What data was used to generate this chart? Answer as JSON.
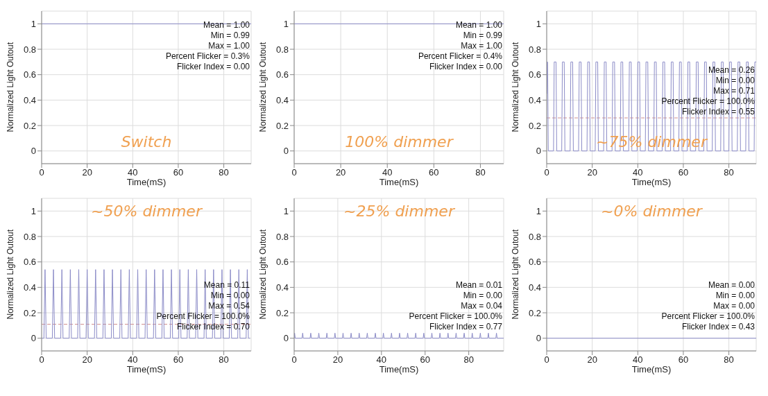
{
  "chart_data": [
    {
      "type": "line",
      "title": "Switch",
      "xlabel": "Time(mS)",
      "ylabel": "Normalized Light Outout",
      "x": [
        0,
        92
      ],
      "values": [
        1,
        1
      ],
      "color": "#8c8cc8",
      "xlim": [
        0,
        92
      ],
      "xticks": [
        0,
        20,
        40,
        60,
        80
      ],
      "ylim": [
        -0.1,
        1.1
      ],
      "yticks": [
        0,
        0.2,
        0.4,
        0.6,
        0.8,
        1
      ],
      "grid": true,
      "annotations": [
        "Mean = 1.00",
        "Min = 0.99",
        "Max = 1.00",
        "Percent Flicker = 0.3%",
        "Flicker Index = 0.00"
      ]
    },
    {
      "type": "line",
      "title": "100% dimmer",
      "xlabel": "Time(mS)",
      "ylabel": "Normalized Light Outout",
      "x": [
        0,
        90
      ],
      "values": [
        1,
        1
      ],
      "color": "#8c8cc8",
      "xlim": [
        0,
        90
      ],
      "xticks": [
        0,
        20,
        40,
        60,
        80
      ],
      "ylim": [
        -0.1,
        1.1
      ],
      "yticks": [
        0,
        0.2,
        0.4,
        0.6,
        0.8,
        1
      ],
      "grid": true,
      "annotations": [
        "Mean = 1.00",
        "Min = 0.99",
        "Max = 1.00",
        "Percent Flicker = 0.4%",
        "Flicker Index = 0.00"
      ]
    },
    {
      "type": "line",
      "title": "~75% dimmer",
      "xlabel": "Time(mS)",
      "ylabel": "Normalized Light Outout",
      "x": [
        0,
        0.1,
        0.4,
        0.7,
        3.0,
        3.3,
        4.1,
        4.4,
        6.6,
        6.9,
        7.7,
        8.0,
        10.3,
        10.6,
        11.4,
        11.7,
        14.0,
        14.3,
        15.1,
        15.4,
        17.7,
        18.0,
        18.8,
        19.1,
        21.3,
        21.6,
        22.4,
        22.7,
        25.0,
        25.3,
        26.1,
        26.4,
        28.7,
        29.0,
        29.8,
        30.1,
        32.3,
        32.6,
        33.4,
        33.7,
        36.0,
        36.3,
        37.1,
        37.4,
        39.7,
        40.0,
        40.8,
        41.1,
        43.3,
        43.6,
        44.4,
        44.7,
        47.0,
        47.3,
        48.1,
        48.4,
        50.7,
        51.0,
        51.8,
        52.1,
        54.4,
        54.7,
        55.5,
        55.8,
        58.0,
        58.3,
        59.1,
        59.4,
        61.7,
        62.0,
        62.8,
        63.1,
        65.4,
        65.7,
        66.5,
        66.8,
        69.0,
        69.3,
        70.1,
        70.4,
        72.7,
        73.0,
        73.8,
        74.1,
        76.4,
        76.7,
        77.5,
        77.8,
        80.0,
        80.3,
        81.1,
        81.4,
        83.7,
        84.0,
        84.8,
        85.1,
        87.4,
        87.7,
        88.5,
        88.8,
        91.1,
        91.4,
        92
      ],
      "values": [
        0.45,
        0.7,
        0.7,
        0,
        0,
        0.7,
        0.7,
        0,
        0,
        0.7,
        0.7,
        0,
        0,
        0.7,
        0.7,
        0,
        0,
        0.7,
        0.7,
        0,
        0,
        0.7,
        0.7,
        0,
        0,
        0.7,
        0.7,
        0,
        0,
        0.7,
        0.7,
        0,
        0,
        0.7,
        0.7,
        0,
        0,
        0.7,
        0.7,
        0,
        0,
        0.7,
        0.7,
        0,
        0,
        0.7,
        0.7,
        0,
        0,
        0.7,
        0.7,
        0,
        0,
        0.7,
        0.7,
        0,
        0,
        0.7,
        0.7,
        0,
        0,
        0.7,
        0.7,
        0,
        0,
        0.7,
        0.7,
        0,
        0,
        0.7,
        0.7,
        0,
        0,
        0.7,
        0.7,
        0,
        0,
        0.7,
        0.7,
        0,
        0,
        0.7,
        0.7,
        0,
        0,
        0.7,
        0.7,
        0,
        0,
        0.7,
        0.7,
        0,
        0,
        0.7,
        0.7,
        0,
        0,
        0.7,
        0.7,
        0,
        0,
        0.7,
        0.7
      ],
      "color": "#8c8cc8",
      "xlim": [
        0,
        92
      ],
      "xticks": [
        0,
        20,
        40,
        60,
        80
      ],
      "ylim": [
        -0.1,
        1.1
      ],
      "yticks": [
        0,
        0.2,
        0.4,
        0.6,
        0.8,
        1
      ],
      "grid": true,
      "ref_lines": [
        {
          "axis": "y",
          "value": 0.26,
          "color": "#d09090",
          "line_style": "dashed"
        }
      ],
      "annotations": [
        "Mean = 0.26",
        "Min = 0.00",
        "Max = 0.71",
        "Percent Flicker = 100.0%",
        "Flicker Index = 0.55"
      ]
    },
    {
      "type": "line",
      "title": "~50% dimmer",
      "xlabel": "Time(mS)",
      "ylabel": "Normalized Light Outout",
      "x": [
        0,
        1.0,
        1.5,
        2.0,
        4.7,
        5.2,
        5.7,
        8.4,
        8.9,
        9.4,
        12.1,
        12.6,
        13.1,
        15.8,
        16.3,
        16.8,
        19.5,
        20.0,
        20.5,
        23.2,
        23.7,
        24.2,
        26.9,
        27.4,
        27.9,
        30.6,
        31.1,
        31.6,
        34.3,
        34.8,
        35.3,
        38.0,
        38.5,
        39.0,
        41.7,
        42.2,
        42.7,
        45.4,
        45.9,
        46.4,
        49.1,
        49.6,
        50.1,
        52.8,
        53.3,
        53.8,
        56.5,
        57.0,
        57.5,
        60.2,
        60.7,
        61.2,
        63.9,
        64.4,
        64.9,
        67.6,
        68.1,
        68.6,
        71.3,
        71.8,
        72.3,
        75.0,
        75.5,
        76.0,
        78.7,
        79.2,
        79.7,
        82.4,
        82.9,
        83.4,
        86.1,
        86.6,
        87.1,
        89.8,
        90.3,
        90.8,
        91.5
      ],
      "values": [
        0,
        0,
        0.54,
        0,
        0,
        0.54,
        0,
        0,
        0.54,
        0,
        0,
        0.54,
        0,
        0,
        0.54,
        0,
        0,
        0.54,
        0,
        0,
        0.54,
        0,
        0,
        0.54,
        0,
        0,
        0.54,
        0,
        0,
        0.54,
        0,
        0,
        0.54,
        0,
        0,
        0.54,
        0,
        0,
        0.54,
        0,
        0,
        0.54,
        0,
        0,
        0.54,
        0,
        0,
        0.54,
        0,
        0,
        0.54,
        0,
        0,
        0.54,
        0,
        0,
        0.54,
        0,
        0,
        0.54,
        0,
        0,
        0.54,
        0,
        0,
        0.54,
        0,
        0,
        0.54,
        0,
        0,
        0.54,
        0,
        0,
        0.54,
        0,
        0
      ],
      "color": "#8c8cc8",
      "xlim": [
        0,
        92
      ],
      "xticks": [
        0,
        20,
        40,
        60,
        80
      ],
      "ylim": [
        -0.1,
        1.1
      ],
      "yticks": [
        0,
        0.2,
        0.4,
        0.6,
        0.8,
        1
      ],
      "grid": true,
      "ref_lines": [
        {
          "axis": "y",
          "value": 0.11,
          "color": "#d09090",
          "line_style": "dashed"
        }
      ],
      "annotations": [
        "Mean = 0.11",
        "Min = 0.00",
        "Max = 0.54",
        "Percent Flicker = 100.0%",
        "Flicker Index = 0.70"
      ]
    },
    {
      "type": "line",
      "title": "~25% dimmer",
      "xlabel": "Time(mS)",
      "ylabel": "Normalized Light Outout",
      "x": [
        0,
        0.2,
        0.5,
        3.6,
        3.9,
        4.2,
        7.3,
        7.6,
        7.9,
        11.0,
        11.3,
        11.6,
        14.7,
        15.0,
        15.3,
        18.4,
        18.7,
        19.0,
        22.1,
        22.4,
        22.7,
        25.8,
        26.1,
        26.4,
        29.5,
        29.8,
        30.1,
        33.2,
        33.5,
        33.8,
        36.9,
        37.2,
        37.5,
        40.6,
        40.9,
        41.2,
        44.3,
        44.6,
        44.9,
        48.0,
        48.3,
        48.6,
        51.7,
        52.0,
        52.3,
        55.4,
        55.7,
        56.0,
        59.1,
        59.4,
        59.7,
        62.8,
        63.1,
        63.4,
        66.5,
        66.8,
        67.1,
        70.2,
        70.5,
        70.8,
        73.9,
        74.2,
        74.5,
        77.6,
        77.9,
        78.2,
        81.3,
        81.6,
        81.9,
        85.0,
        85.3,
        85.6,
        88.7,
        89.0,
        89.3,
        92.4,
        92.7,
        93.0,
        96
      ],
      "values": [
        0,
        0.04,
        0,
        0,
        0.04,
        0,
        0,
        0.04,
        0,
        0,
        0.04,
        0,
        0,
        0.04,
        0,
        0,
        0.04,
        0,
        0,
        0.04,
        0,
        0,
        0.04,
        0,
        0,
        0.04,
        0,
        0,
        0.04,
        0,
        0,
        0.04,
        0,
        0,
        0.04,
        0,
        0,
        0.04,
        0,
        0,
        0.04,
        0,
        0,
        0.04,
        0,
        0,
        0.04,
        0,
        0,
        0.04,
        0,
        0,
        0.04,
        0,
        0,
        0.04,
        0,
        0,
        0.04,
        0,
        0,
        0.04,
        0,
        0,
        0.04,
        0,
        0,
        0.04,
        0,
        0,
        0.04,
        0,
        0,
        0.04,
        0,
        0,
        0.04,
        0,
        0
      ],
      "color": "#8c8cc8",
      "xlim": [
        0,
        96
      ],
      "xticks": [
        0,
        20,
        40,
        60,
        80
      ],
      "ylim": [
        -0.1,
        1.1
      ],
      "yticks": [
        0,
        0.2,
        0.4,
        0.6,
        0.8,
        1
      ],
      "grid": true,
      "annotations": [
        "Mean = 0.01",
        "Min = 0.00",
        "Max = 0.04",
        "Percent Flicker = 100.0%",
        "Flicker Index = 0.77"
      ]
    },
    {
      "type": "line",
      "title": "~0% dimmer",
      "xlabel": "Time(mS)",
      "ylabel": "Normalized Light Outout",
      "x": [
        0,
        92
      ],
      "values": [
        0,
        0
      ],
      "color": "#8c8cc8",
      "xlim": [
        0,
        92
      ],
      "xticks": [
        0,
        20,
        40,
        60,
        80
      ],
      "ylim": [
        -0.1,
        1.1
      ],
      "yticks": [
        0,
        0.2,
        0.4,
        0.6,
        0.8,
        1
      ],
      "grid": true,
      "annotations": [
        "Mean = 0.00",
        "Min = 0.00",
        "Max = 0.00",
        "Percent Flicker = 100.0%",
        "Flicker Index = 0.43"
      ]
    }
  ]
}
